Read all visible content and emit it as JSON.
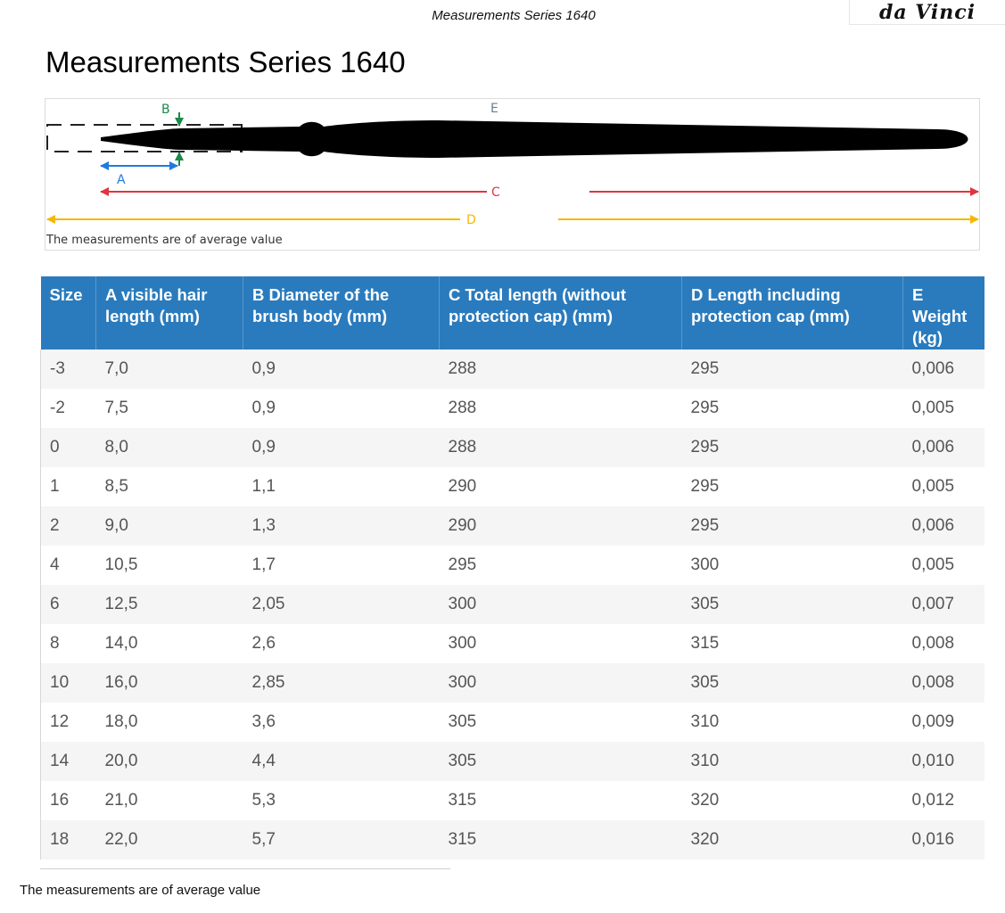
{
  "header": {
    "doc_title": "Measurements Series 1640",
    "logo_text": "da Vinci"
  },
  "page_title": "Measurements Series 1640",
  "diagram": {
    "labels": {
      "a": "A",
      "b": "B",
      "c": "C",
      "d": "D",
      "e": "E"
    },
    "note": "The measurements are of average value",
    "colors": {
      "a": "#1f7be0",
      "b": "#1a8a4a",
      "c": "#e0353f",
      "d": "#f5b800",
      "e": "#6a7f8f",
      "brush": "#000000"
    }
  },
  "table": {
    "headers": [
      "Size",
      "A visible hair length (mm)",
      "B Diameter of the brush body (mm)",
      "C Total length (without protection cap) (mm)",
      "D Length including protection cap (mm)",
      "E Weight (kg)"
    ],
    "rows": [
      [
        "-3",
        "7,0",
        "0,9",
        "288",
        "295",
        "0,006"
      ],
      [
        "-2",
        "7,5",
        "0,9",
        "288",
        "295",
        "0,005"
      ],
      [
        "0",
        "8,0",
        "0,9",
        "288",
        "295",
        "0,006"
      ],
      [
        "1",
        "8,5",
        "1,1",
        "290",
        "295",
        "0,005"
      ],
      [
        "2",
        "9,0",
        "1,3",
        "290",
        "295",
        "0,006"
      ],
      [
        "4",
        "10,5",
        "1,7",
        "295",
        "300",
        "0,005"
      ],
      [
        "6",
        "12,5",
        "2,05",
        "300",
        "305",
        "0,007"
      ],
      [
        "8",
        "14,0",
        "2,6",
        "300",
        "315",
        "0,008"
      ],
      [
        "10",
        "16,0",
        "2,85",
        "300",
        "305",
        "0,008"
      ],
      [
        "12",
        "18,0",
        "3,6",
        "305",
        "310",
        "0,009"
      ],
      [
        "14",
        "20,0",
        "4,4",
        "305",
        "310",
        "0,010"
      ],
      [
        "16",
        "21,0",
        "5,3",
        "315",
        "320",
        "0,012"
      ],
      [
        "18",
        "22,0",
        "5,7",
        "315",
        "320",
        "0,016"
      ]
    ],
    "header_color": "#2a7bbd"
  },
  "footnote": "The measurements are of average value"
}
